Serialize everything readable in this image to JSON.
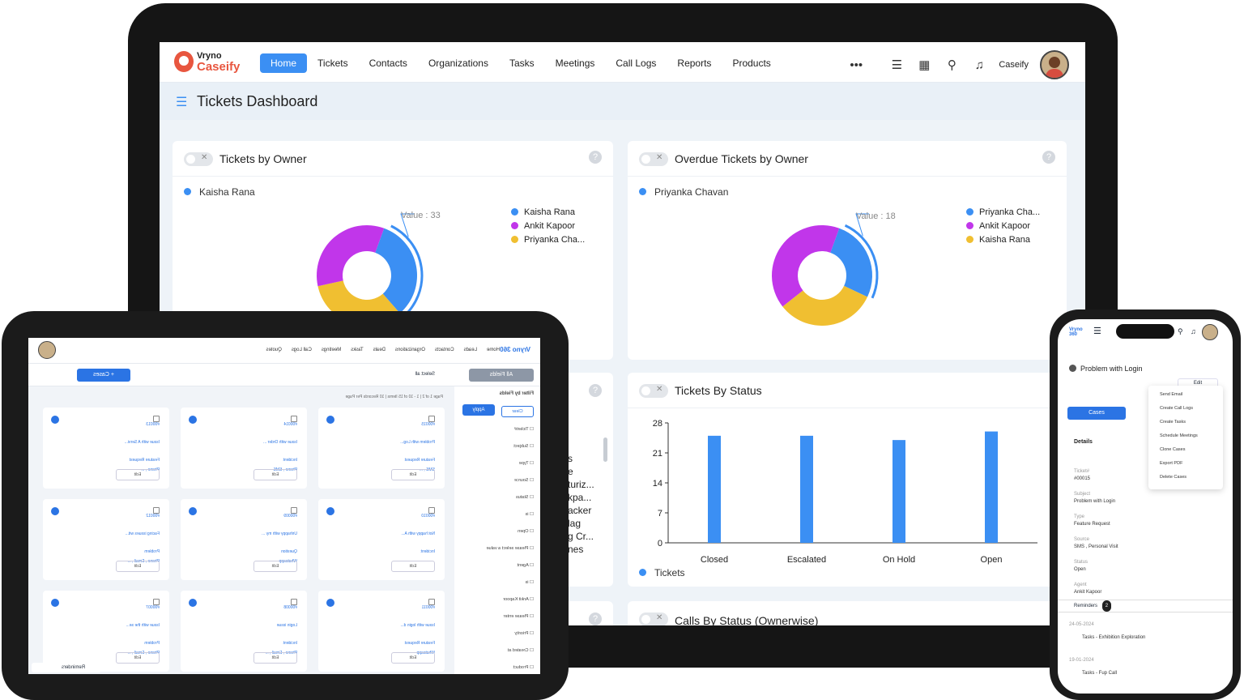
{
  "laptop": {
    "brand": {
      "line1": "Vryno",
      "line2": "Caseify"
    },
    "nav": [
      "Home",
      "Tickets",
      "Contacts",
      "Organizations",
      "Tasks",
      "Meetings",
      "Call Logs",
      "Reports",
      "Products"
    ],
    "more_icon": "•••",
    "user_name": "Caseify",
    "icons": [
      "add-list-icon",
      "calendar-icon",
      "search-icon",
      "bell-icon"
    ],
    "dashboard_title": "Tickets Dashboard",
    "cards": {
      "owner": {
        "title": "Tickets by Owner",
        "selected": "Kaisha Rana",
        "value_label": "Value : 33",
        "legend": [
          "Kaisha Rana",
          "Ankit Kapoor",
          "Priyanka Cha..."
        ]
      },
      "overdue": {
        "title": "Overdue Tickets by Owner",
        "selected": "Priyanka Chavan",
        "value_label": "Value : 18",
        "legend": [
          "Priyanka Cha...",
          "Ankit Kapoor",
          "Kaisha Rana"
        ]
      },
      "status": {
        "title": "Tickets By Status",
        "legend": "Tickets"
      },
      "calls": {
        "title": "Calls By Status (Ownerwise)"
      }
    },
    "partial_list": [
      "s",
      "e",
      "turiz...",
      "kpa...",
      "acker",
      "lag",
      "g Cr...",
      "nes"
    ],
    "colors": {
      "blue": "#3b8ff3",
      "purple": "#c136ea",
      "yellow": "#f0bf31"
    }
  },
  "chart_data": [
    {
      "type": "pie",
      "title": "Tickets by Owner",
      "labels": [
        "Kaisha Rana",
        "Ankit Kapoor",
        "Priyanka Cha..."
      ],
      "values": [
        33,
        33,
        34
      ]
    },
    {
      "type": "pie",
      "title": "Overdue Tickets by Owner",
      "labels": [
        "Priyanka Cha...",
        "Ankit Kapoor",
        "Kaisha Rana"
      ],
      "values": [
        18,
        22,
        28
      ]
    },
    {
      "type": "bar",
      "title": "Tickets By Status",
      "categories": [
        "Closed",
        "Escalated",
        "On Hold",
        "Open"
      ],
      "series": [
        {
          "name": "Tickets",
          "values": [
            25,
            25,
            24,
            26
          ]
        }
      ],
      "yticks": [
        "28",
        "21",
        "14",
        "7",
        "0"
      ],
      "ylim": [
        0,
        28
      ]
    }
  ],
  "tablet": {
    "nav": [
      "Home",
      "Leads",
      "Contacts",
      "Organizations",
      "Deals",
      "Tasks",
      "Meetings",
      "Call Logs",
      "Quotes"
    ],
    "brand": "Vryno 360",
    "add_button": "+ Cases",
    "fields_button": "All Fields",
    "select_all": "Select all",
    "paging": "Page 1 of 2 | 1 - 10 of 15 Items | 10 Records Per Page",
    "reminders": "Reminders",
    "filter": {
      "title": "Filter by Fields",
      "apply": "Apply",
      "clear": "Clear",
      "fields": [
        "Ticket#",
        "Subject",
        "Type",
        "Source",
        "Status",
        "is",
        "Open",
        "Please select a value",
        "Agent",
        "is",
        "Ankit Kapoor",
        "Please enter",
        "Priority",
        "Created at",
        "Product"
      ]
    },
    "cards": [
      {
        "ticket": "#00015",
        "subject": "Problem with Log...",
        "type": "Feature Request",
        "source": "SMS , ..."
      },
      {
        "ticket": "#00014",
        "subject": "Issue with Order ...",
        "type": "Incident",
        "source": "Phone , SMS"
      },
      {
        "ticket": "#00013",
        "subject": "Issue with A Servi...",
        "type": "Feature Request",
        "source": "Phone , ..."
      },
      {
        "ticket": "#00010",
        "subject": "Not happy with A...",
        "type": "Incident",
        "source": ""
      },
      {
        "ticket": "#00009",
        "subject": "Unhappy with my ...",
        "type": "Question",
        "source": "Whatsapp"
      },
      {
        "ticket": "#00012",
        "subject": "Facing issues wit...",
        "type": "Problem",
        "source": "Phone , Email , ..."
      },
      {
        "ticket": "#00011",
        "subject": "Issue with login d...",
        "type": "Feature Request",
        "source": "Whatsapp"
      },
      {
        "ticket": "#00008",
        "subject": "Login issue",
        "type": "Incident",
        "source": "Phone , Email , ..."
      },
      {
        "ticket": "#00007",
        "subject": "Issue with the se...",
        "type": "Problem",
        "source": "Phone , Email , ..."
      }
    ],
    "edit": "Edit"
  },
  "phone": {
    "brand": "Vryno 360",
    "title": "Problem with Login",
    "edit": "Edit",
    "cases_button": "Cases",
    "details": "Details",
    "menu": [
      "Send Email",
      "Create Call Logs",
      "Create Tasks",
      "Schedule Meetings",
      "Clone Cases",
      "Export PDF",
      "Delete Cases"
    ],
    "fields": [
      {
        "k": "Ticket#",
        "v": "#00015"
      },
      {
        "k": "Subject",
        "v": "Problem with Login"
      },
      {
        "k": "Type",
        "v": "Feature Request"
      },
      {
        "k": "Source",
        "v": "SMS , Personal Visit"
      },
      {
        "k": "Status",
        "v": "Open"
      },
      {
        "k": "Agent",
        "v": "Ankit Kapoor"
      }
    ],
    "reminders": "Reminders",
    "reminder_count": "2",
    "reminder_items": [
      {
        "date": "24-05-2024",
        "text": "Tasks - Exhibition Exploration"
      },
      {
        "date": "19-01-2024",
        "text": "Tasks - Fup Call"
      }
    ]
  }
}
